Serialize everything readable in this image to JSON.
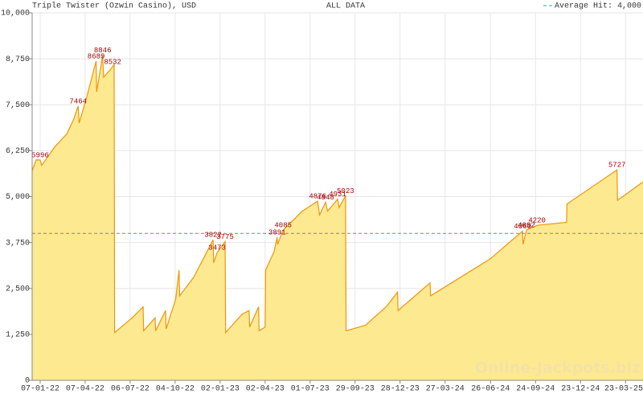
{
  "chart_data": {
    "type": "area",
    "title": "Triple Twister (Ozwin Casino), USD",
    "subtitle": "ALL DATA",
    "watermark": "Online-Jackpots.biz",
    "color": "#f0950c",
    "fill_color": "#fde98f",
    "grid": true,
    "x": [
      "2021-12-22",
      "2021-12-30",
      "2022-01-07",
      "2022-01-10",
      "2022-02-05",
      "2022-03-01",
      "2022-03-15",
      "2022-03-24",
      "2022-03-26",
      "2022-04-10",
      "2022-04-29",
      "2022-04-30",
      "2022-05-12",
      "2022-05-14",
      "2022-06-01",
      "2022-06-04",
      "2022-06-05",
      "2022-07-10",
      "2022-08-01",
      "2022-08-02",
      "2022-08-25",
      "2022-08-26",
      "2022-09-15",
      "2022-09-16",
      "2022-10-05",
      "2022-10-12",
      "2022-10-13",
      "2022-11-10",
      "2022-12-19",
      "2022-12-20",
      "2022-12-27",
      "2023-01-12",
      "2023-01-13",
      "2023-02-15",
      "2023-03-01",
      "2023-03-02",
      "2023-03-20",
      "2023-03-21",
      "2023-04-02",
      "2023-04-03",
      "2023-04-20",
      "2023-04-26",
      "2023-04-27",
      "2023-05-08",
      "2023-06-15",
      "2023-07-16",
      "2023-07-20",
      "2023-08-01",
      "2023-08-05",
      "2023-08-25",
      "2023-08-28",
      "2023-09-10",
      "2023-09-11",
      "2023-10-20",
      "2023-11-30",
      "2023-12-23",
      "2023-12-24",
      "2024-02-26",
      "2024-02-27",
      "2024-06-25",
      "2024-08-29",
      "2024-08-30",
      "2024-09-06",
      "2024-09-27",
      "2024-11-25",
      "2024-11-26",
      "2025-03-06",
      "2025-03-07",
      "2025-04-27"
    ],
    "values": [
      5700,
      6000,
      5996,
      5850,
      6350,
      6700,
      7100,
      7464,
      7000,
      7700,
      8689,
      7850,
      8846,
      8250,
      8532,
      8600,
      1300,
      1700,
      2000,
      1350,
      1700,
      1350,
      1900,
      1400,
      2200,
      3000,
      2300,
      2800,
      3822,
      3200,
      3473,
      3775,
      1300,
      1800,
      1900,
      1450,
      2000,
      1350,
      1450,
      3000,
      3500,
      3891,
      3700,
      4085,
      4600,
      4876,
      4500,
      4848,
      4600,
      4931,
      4700,
      5023,
      1350,
      1500,
      2000,
      2400,
      1900,
      2650,
      2300,
      3300,
      4060,
      3700,
      4092,
      4220,
      4300,
      4800,
      5727,
      4900,
      5400
    ],
    "annotations": [
      {
        "x": "2022-01-07",
        "value": 5996
      },
      {
        "x": "2022-03-24",
        "value": 7464
      },
      {
        "x": "2022-04-29",
        "value": 8689
      },
      {
        "x": "2022-05-12",
        "value": 8846
      },
      {
        "x": "2022-06-01",
        "value": 8532
      },
      {
        "x": "2022-12-19",
        "value": 3822
      },
      {
        "x": "2022-12-27",
        "value": 3473
      },
      {
        "x": "2023-01-12",
        "value": 3775
      },
      {
        "x": "2023-04-26",
        "value": 3891
      },
      {
        "x": "2023-05-08",
        "value": 4085
      },
      {
        "x": "2023-07-16",
        "value": 4876
      },
      {
        "x": "2023-08-01",
        "value": 4848
      },
      {
        "x": "2023-08-25",
        "value": 4931
      },
      {
        "x": "2023-09-10",
        "value": 5023
      },
      {
        "x": "2024-08-29",
        "value": 4060
      },
      {
        "x": "2024-09-06",
        "value": 4092
      },
      {
        "x": "2024-09-27",
        "value": 4220
      },
      {
        "x": "2025-03-06",
        "value": 5727
      }
    ],
    "reference_line": {
      "label": "Average Hit: 4,000",
      "value": 4000,
      "color": "#3a9ad9"
    },
    "xlim": [
      "2021-12-22",
      "2025-04-27"
    ],
    "xticks": [
      {
        "value": "2022-01-07",
        "label": "07-01-22"
      },
      {
        "value": "2022-04-07",
        "label": "07-04-22"
      },
      {
        "value": "2022-07-06",
        "label": "06-07-22"
      },
      {
        "value": "2022-10-04",
        "label": "04-10-22"
      },
      {
        "value": "2023-01-02",
        "label": "02-01-23"
      },
      {
        "value": "2023-04-02",
        "label": "02-04-23"
      },
      {
        "value": "2023-07-01",
        "label": "01-07-23"
      },
      {
        "value": "2023-09-29",
        "label": "29-09-23"
      },
      {
        "value": "2023-12-28",
        "label": "28-12-23"
      },
      {
        "value": "2024-03-27",
        "label": "27-03-24"
      },
      {
        "value": "2024-06-26",
        "label": "26-06-24"
      },
      {
        "value": "2024-09-24",
        "label": "24-09-24"
      },
      {
        "value": "2024-12-23",
        "label": "23-12-24"
      },
      {
        "value": "2025-03-23",
        "label": "23-03-25"
      }
    ],
    "ylim": [
      0,
      10000
    ],
    "yticks": [
      0,
      {
        "value": 1250,
        "label": "1,250"
      },
      {
        "value": 2500,
        "label": "2,500"
      },
      {
        "value": 3750,
        "label": "3,750"
      },
      {
        "value": 5000,
        "label": "5,000"
      },
      {
        "value": 6250,
        "label": "6,250"
      },
      {
        "value": 7500,
        "label": "7,500"
      },
      {
        "value": 8750,
        "label": "8,750"
      },
      {
        "value": 10000,
        "label": "10,000"
      }
    ]
  }
}
